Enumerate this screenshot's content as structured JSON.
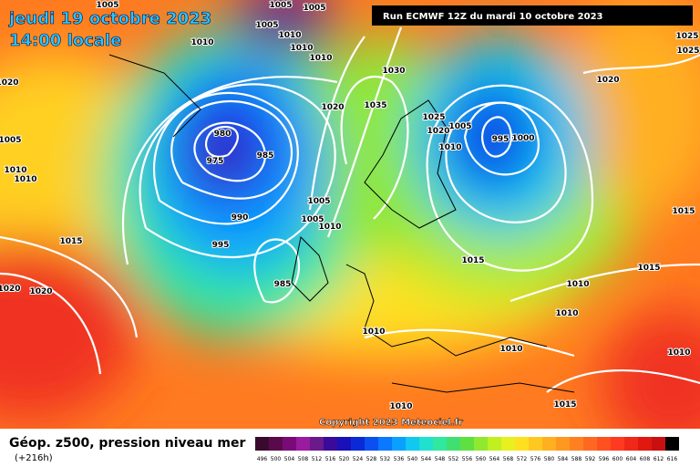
{
  "header": {
    "date": "jeudi 19 octobre 2023",
    "time": "14:00 locale",
    "run": "Run ECMWF 12Z du mardi 10 octobre 2023"
  },
  "footer": {
    "title": "Géop. z500, pression niveau mer",
    "lead": "(+216h)",
    "copyright": "Copyright 2023 Meteociel.fr"
  },
  "isobar_labels": [
    1005,
    1005,
    1005,
    1005,
    1010,
    1010,
    1010,
    1010,
    1020,
    1030,
    1020,
    1035,
    1025,
    1020,
    1005,
    1010,
    995,
    1000,
    980,
    975,
    985,
    1005,
    1010,
    1010,
    990,
    995,
    1005,
    1005,
    1010,
    1015,
    985,
    1020,
    1020,
    1015,
    1010,
    1015,
    1015,
    1025,
    1025,
    1020,
    1010,
    1010,
    1010,
    1010,
    1015,
    1010
  ],
  "legend": {
    "labels": [
      496,
      500,
      504,
      508,
      512,
      516,
      520,
      524,
      528,
      532,
      536,
      540,
      544,
      548,
      552,
      556,
      560,
      564,
      568,
      572,
      576,
      580,
      584,
      588,
      592,
      596,
      600,
      604,
      608,
      612,
      616
    ],
    "colors": [
      "#3a0a2e",
      "#5a0a4a",
      "#7a0a78",
      "#9a1aa0",
      "#6a1a8a",
      "#3a0a9a",
      "#1a10b8",
      "#0a2ad8",
      "#0a50f0",
      "#0a78ff",
      "#0aa0ff",
      "#10c8f0",
      "#20e0d0",
      "#30e8a0",
      "#40e070",
      "#60e040",
      "#90e830",
      "#c0f020",
      "#e8f020",
      "#ffe020",
      "#ffc820",
      "#ffb020",
      "#ff9820",
      "#ff8020",
      "#ff6820",
      "#ff5020",
      "#ff3a20",
      "#f02818",
      "#e01810",
      "#c81010",
      "#000000"
    ]
  }
}
